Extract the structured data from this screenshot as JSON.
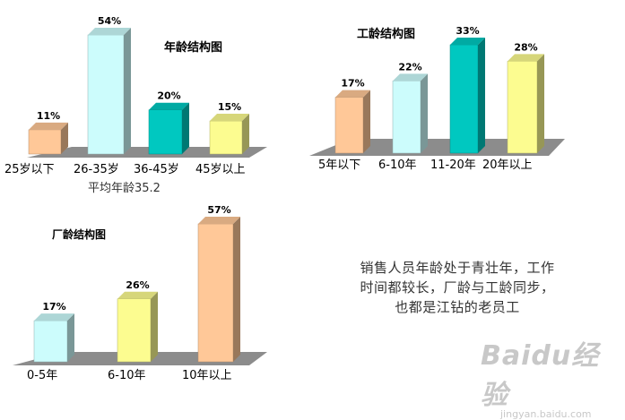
{
  "chart_data": [
    {
      "type": "bar",
      "title": "年龄结构图",
      "categories": [
        "25岁以下",
        "26-35岁",
        "36-45岁",
        "45岁以上"
      ],
      "values": [
        11,
        54,
        20,
        15
      ],
      "value_labels": [
        "11%",
        "54%",
        "20%",
        "15%"
      ],
      "colors": [
        "#ffc898",
        "#ccfcfc",
        "#00c8c0",
        "#fcfc90"
      ],
      "caption": "平均年龄35.2"
    },
    {
      "type": "bar",
      "title": "工龄结构图",
      "categories": [
        "5年以下",
        "6-10年",
        "11-20年",
        "20年以上"
      ],
      "values": [
        17,
        22,
        33,
        28
      ],
      "value_labels": [
        "17%",
        "22%",
        "33%",
        "28%"
      ],
      "colors": [
        "#ffc898",
        "#ccfcfc",
        "#00c8c0",
        "#fcfc90"
      ]
    },
    {
      "type": "bar",
      "title": "厂龄结构图",
      "categories": [
        "0-5年",
        "6-10年",
        "10年以上"
      ],
      "values": [
        17,
        26,
        57
      ],
      "value_labels": [
        "17%",
        "26%",
        "57%"
      ],
      "colors": [
        "#ccfcfc",
        "#fcfc90",
        "#ffc898"
      ]
    }
  ],
  "note": [
    "销售人员年龄处于青壮年，工作",
    "时间都较长，厂龄与工龄同步，",
    "也都是江钻的老员工"
  ],
  "watermark": {
    "text": "Baidu经验",
    "url": "jingyan.baidu.com"
  }
}
